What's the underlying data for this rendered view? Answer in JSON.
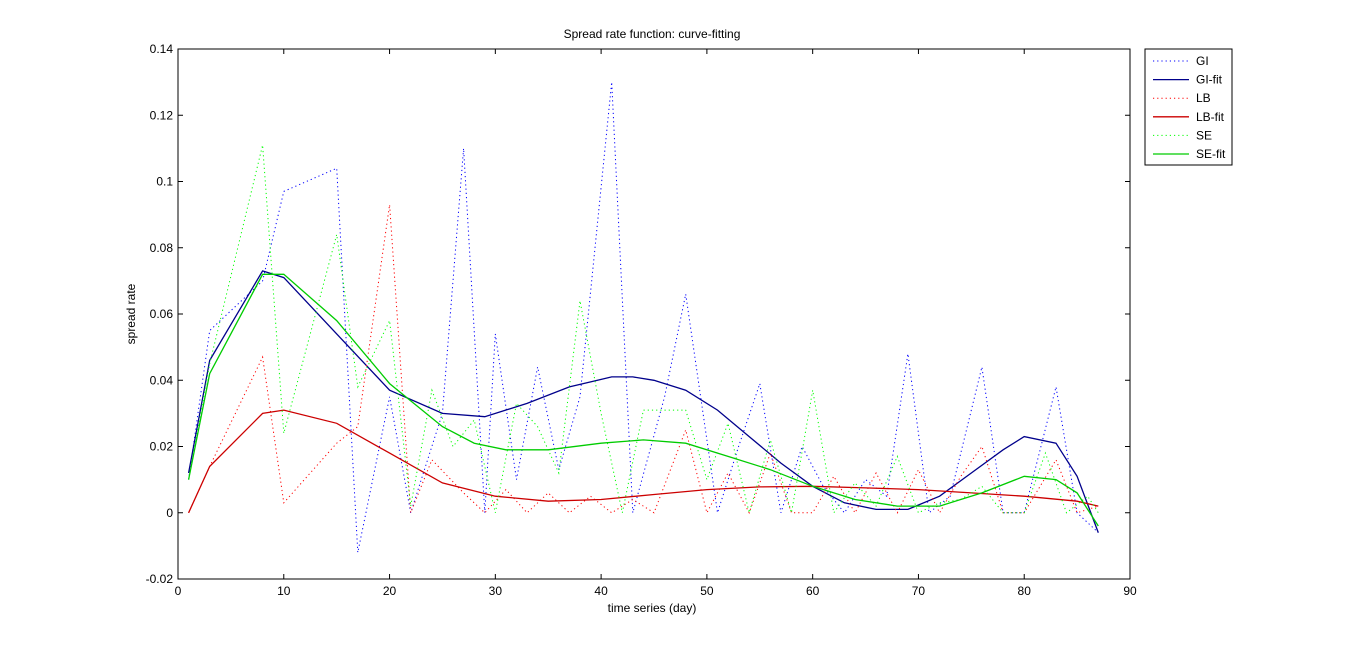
{
  "chart_data": {
    "type": "line",
    "title": "Spread rate function: curve-fitting",
    "xlabel": "time series (day)",
    "ylabel": "spread rate",
    "xlim": [
      0,
      90
    ],
    "ylim": [
      -0.02,
      0.14
    ],
    "xticks": [
      0,
      10,
      20,
      30,
      40,
      50,
      60,
      70,
      80,
      90
    ],
    "yticks": [
      -0.02,
      0,
      0.02,
      0.04,
      0.06,
      0.08,
      0.1,
      0.12,
      0.14
    ],
    "xtick_labels": [
      "0",
      "10",
      "20",
      "30",
      "40",
      "50",
      "60",
      "70",
      "80",
      "90"
    ],
    "ytick_labels": [
      "-0.02",
      "0",
      "0.02",
      "0.04",
      "0.06",
      "0.08",
      "0.1",
      "0.12",
      "0.14"
    ],
    "grid": false,
    "legend_position": "top-right",
    "series": [
      {
        "name": "GI",
        "color": "#0000ff",
        "style": "dotted",
        "x": [
          1,
          3,
          8,
          10,
          15,
          17,
          20,
          22,
          25,
          27,
          29,
          30,
          32,
          34,
          36,
          38,
          41,
          43,
          46,
          48,
          51,
          53,
          55,
          57,
          59,
          61,
          63,
          65,
          67,
          69,
          71,
          73,
          76,
          78,
          80,
          83,
          85,
          87
        ],
        "y": [
          0.01,
          0.055,
          0.07,
          0.097,
          0.104,
          -0.012,
          0.035,
          0.0,
          0.03,
          0.11,
          0.0,
          0.054,
          0.01,
          0.044,
          0.013,
          0.035,
          0.13,
          0.0,
          0.035,
          0.066,
          0.0,
          0.02,
          0.039,
          0.0,
          0.02,
          0.008,
          0.0,
          0.01,
          0.005,
          0.048,
          0.0,
          0.005,
          0.044,
          0.0,
          0.0,
          0.038,
          0.0,
          -0.006
        ]
      },
      {
        "name": "GI-fit",
        "color": "#00008b",
        "style": "solid",
        "x": [
          1,
          3,
          8,
          10,
          15,
          20,
          25,
          29,
          33,
          37,
          41,
          43,
          45,
          48,
          51,
          54,
          57,
          60,
          63,
          66,
          69,
          72,
          75,
          78,
          80,
          83,
          85,
          87
        ],
        "y": [
          0.012,
          0.046,
          0.073,
          0.071,
          0.054,
          0.037,
          0.03,
          0.029,
          0.033,
          0.038,
          0.041,
          0.041,
          0.04,
          0.037,
          0.031,
          0.023,
          0.015,
          0.008,
          0.003,
          0.001,
          0.001,
          0.005,
          0.012,
          0.019,
          0.023,
          0.021,
          0.011,
          -0.006
        ]
      },
      {
        "name": "LB",
        "color": "#ff0000",
        "style": "dotted",
        "x": [
          1,
          3,
          8,
          10,
          15,
          17,
          20,
          22,
          24,
          27,
          29,
          31,
          33,
          35,
          37,
          39,
          41,
          43,
          45,
          48,
          50,
          52,
          54,
          56,
          58,
          60,
          62,
          64,
          66,
          68,
          70,
          72,
          74,
          76,
          78,
          80,
          83,
          85,
          87
        ],
        "y": [
          0.0,
          0.014,
          0.047,
          0.003,
          0.021,
          0.026,
          0.093,
          0.0,
          0.016,
          0.006,
          0.0,
          0.007,
          0.0,
          0.006,
          0.0,
          0.005,
          0.0,
          0.004,
          0.0,
          0.025,
          0.0,
          0.012,
          0.0,
          0.018,
          0.0,
          0.0,
          0.011,
          0.0,
          0.012,
          0.0,
          0.013,
          0.0,
          0.011,
          0.02,
          0.0,
          0.0,
          0.016,
          0.0,
          0.002
        ]
      },
      {
        "name": "LB-fit",
        "color": "#cc0000",
        "style": "solid",
        "x": [
          1,
          3,
          8,
          10,
          15,
          20,
          25,
          30,
          35,
          40,
          45,
          50,
          55,
          60,
          65,
          70,
          75,
          80,
          85,
          87
        ],
        "y": [
          0.0,
          0.014,
          0.03,
          0.031,
          0.027,
          0.018,
          0.009,
          0.005,
          0.0035,
          0.004,
          0.0055,
          0.007,
          0.0078,
          0.008,
          0.0075,
          0.007,
          0.006,
          0.005,
          0.0035,
          0.002
        ]
      },
      {
        "name": "SE",
        "color": "#00ff00",
        "style": "dotted",
        "x": [
          1,
          3,
          8,
          10,
          15,
          17,
          20,
          22,
          24,
          26,
          28,
          30,
          32,
          34,
          36,
          38,
          40,
          42,
          44,
          46,
          48,
          50,
          52,
          54,
          56,
          58,
          60,
          62,
          64,
          66,
          68,
          70,
          72,
          74,
          76,
          78,
          80,
          82,
          84,
          86,
          87
        ],
        "y": [
          0.01,
          0.045,
          0.111,
          0.024,
          0.084,
          0.038,
          0.058,
          0.002,
          0.037,
          0.02,
          0.028,
          0.0,
          0.033,
          0.026,
          0.012,
          0.064,
          0.03,
          0.0,
          0.031,
          0.031,
          0.031,
          0.01,
          0.027,
          0.0,
          0.022,
          0.0,
          0.037,
          0.0,
          0.009,
          0.002,
          0.017,
          0.0,
          0.003,
          0.004,
          0.008,
          0.0,
          0.0,
          0.018,
          0.0,
          0.005,
          0.0
        ]
      },
      {
        "name": "SE-fit",
        "color": "#00cc00",
        "style": "solid",
        "x": [
          1,
          3,
          8,
          10,
          15,
          20,
          25,
          28,
          31,
          35,
          40,
          44,
          48,
          52,
          56,
          60,
          64,
          68,
          72,
          76,
          80,
          83,
          85,
          87
        ],
        "y": [
          0.01,
          0.042,
          0.072,
          0.072,
          0.058,
          0.039,
          0.026,
          0.021,
          0.019,
          0.019,
          0.021,
          0.022,
          0.021,
          0.017,
          0.013,
          0.008,
          0.004,
          0.002,
          0.002,
          0.006,
          0.011,
          0.01,
          0.006,
          -0.004
        ]
      }
    ]
  }
}
